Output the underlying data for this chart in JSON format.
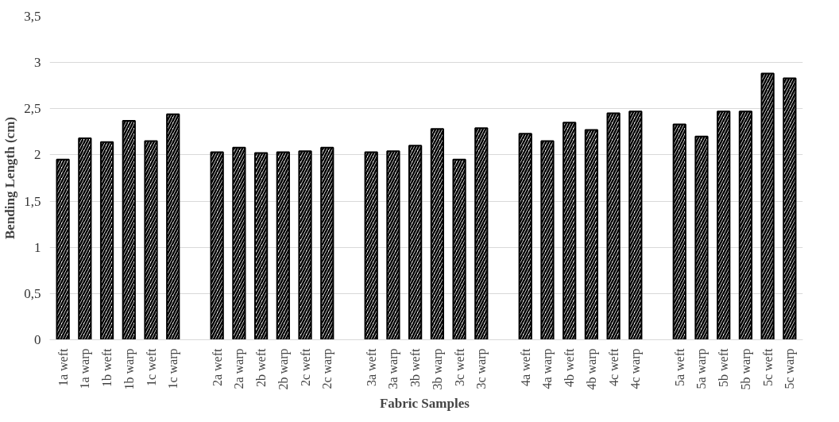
{
  "chart_data": {
    "type": "bar",
    "xlabel": "Fabric  Samples",
    "ylabel": "Bending Length (cm)",
    "categories": [
      "1a weft",
      "1a warp",
      "1b weft",
      "1b warp",
      "1c weft",
      "1c warp",
      null,
      "2a weft",
      "2a warp",
      "2b weft",
      "2b warp",
      "2c weft",
      "2c warp",
      null,
      "3a weft",
      "3a warp",
      "3b weft",
      "3b warp",
      "3c weft",
      "3c warp",
      null,
      "4a weft",
      "4a warp",
      "4b weft",
      "4b warp",
      "4c weft",
      "4c warp",
      null,
      "5a weft",
      "5a warp",
      "5b weft",
      "5b warp",
      "5c weft",
      "5c warp"
    ],
    "values": [
      1.95,
      2.18,
      2.14,
      2.37,
      2.15,
      2.44,
      null,
      2.03,
      2.08,
      2.02,
      2.03,
      2.04,
      2.08,
      null,
      2.03,
      2.04,
      2.1,
      2.28,
      1.95,
      2.29,
      null,
      2.23,
      2.15,
      2.35,
      2.27,
      2.45,
      2.47,
      null,
      2.33,
      2.2,
      2.47,
      2.47,
      2.88,
      2.83
    ],
    "color": "#000000",
    "ylim": [
      0,
      3.5
    ],
    "yticks": [
      0,
      {
        "value": 0.5,
        "label": "0,5"
      },
      1,
      {
        "value": 1.5,
        "label": "1,5"
      },
      2,
      {
        "value": 2.5,
        "label": "2,5"
      },
      3,
      {
        "value": 3.5,
        "label": "3,5"
      }
    ],
    "grid": "y"
  }
}
